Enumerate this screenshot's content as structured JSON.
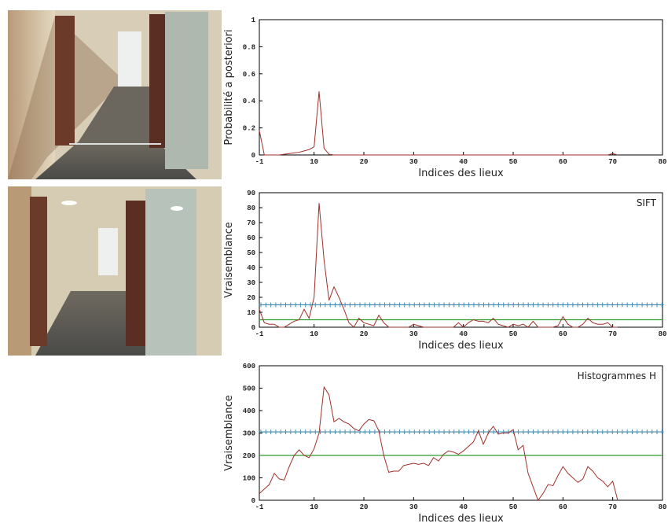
{
  "chart_data": [
    {
      "type": "line",
      "ylabel": "Probabilité a posteriori",
      "xlabel": "Indices des lieux",
      "x": [
        -1,
        0,
        1,
        2,
        3,
        4,
        5,
        6,
        7,
        8,
        9,
        10,
        11,
        12,
        13,
        14,
        15,
        16,
        17,
        18,
        19,
        20,
        21,
        22,
        23,
        24,
        25,
        26,
        27,
        28,
        29,
        30,
        31,
        32,
        33,
        34,
        35,
        36,
        37,
        38,
        39,
        40,
        41,
        42,
        43,
        44,
        45,
        46,
        47,
        48,
        49,
        50,
        51,
        52,
        53,
        54,
        55,
        56,
        57,
        58,
        59,
        60,
        61,
        62,
        63,
        64,
        65,
        66,
        67,
        68,
        69,
        70,
        71
      ],
      "values": [
        0.18,
        0,
        0,
        0,
        0,
        0.005,
        0.01,
        0.015,
        0.02,
        0.03,
        0.04,
        0.06,
        0.47,
        0.05,
        0.005,
        0,
        0,
        0,
        0,
        0,
        0,
        0,
        0,
        0,
        0,
        0,
        0,
        0,
        0,
        0,
        0,
        0,
        0,
        0,
        0,
        0,
        0,
        0,
        0,
        0,
        0,
        0,
        0,
        0,
        0,
        0,
        0,
        0,
        0,
        0,
        0,
        0,
        0,
        0,
        0,
        0,
        0,
        0,
        0,
        0,
        0,
        0,
        0,
        0,
        0,
        0,
        0,
        0,
        0,
        0,
        0,
        0.01,
        0
      ],
      "color": "#a0302a",
      "xlim": [
        -1,
        80
      ],
      "ylim": [
        0,
        1
      ],
      "xticks": [
        -1,
        10,
        20,
        30,
        40,
        50,
        60,
        70,
        80
      ],
      "yticks": [
        0,
        0.2,
        0.4,
        0.6,
        0.8,
        1
      ]
    },
    {
      "type": "line",
      "ylabel": "Vraisemblance",
      "xlabel": "Indices des lieux",
      "annotation": "SIFT",
      "x": [
        -1,
        0,
        1,
        2,
        3,
        4,
        5,
        6,
        7,
        8,
        9,
        10,
        11,
        12,
        13,
        14,
        15,
        16,
        17,
        18,
        19,
        20,
        21,
        22,
        23,
        24,
        25,
        26,
        27,
        28,
        29,
        30,
        31,
        32,
        33,
        34,
        35,
        36,
        37,
        38,
        39,
        40,
        41,
        42,
        43,
        44,
        45,
        46,
        47,
        48,
        49,
        50,
        51,
        52,
        53,
        54,
        55,
        56,
        57,
        58,
        59,
        60,
        61,
        62,
        63,
        64,
        65,
        66,
        67,
        68,
        69,
        70,
        71
      ],
      "values": [
        12,
        3,
        2,
        2,
        0,
        0,
        2,
        4,
        5,
        12,
        6,
        20,
        83,
        45,
        18,
        27,
        20,
        12,
        3,
        0,
        6,
        3,
        2,
        1,
        8,
        3,
        0,
        0,
        0,
        0,
        0,
        2,
        1,
        0,
        0,
        0,
        0,
        0,
        0,
        0,
        3,
        0,
        3,
        5,
        4,
        4,
        3,
        6,
        2,
        1,
        0,
        2,
        1,
        2,
        0,
        4,
        0,
        0,
        0,
        0,
        1,
        7,
        2,
        0,
        0,
        2,
        6,
        3,
        2,
        2,
        3,
        0,
        0
      ],
      "color": "#a0302a",
      "xlim": [
        -1,
        80
      ],
      "ylim": [
        0,
        90
      ],
      "xticks": [
        -1,
        10,
        20,
        30,
        40,
        50,
        60,
        70,
        80
      ],
      "yticks": [
        0,
        10,
        20,
        30,
        40,
        50,
        60,
        70,
        80,
        90
      ],
      "thresholds": [
        {
          "value": 15,
          "color": "#4a8fb5",
          "marker": "+"
        },
        {
          "value": 5,
          "color": "#2e9e2e"
        }
      ]
    },
    {
      "type": "line",
      "ylabel": "Vraisemblance",
      "xlabel": "Indices des lieux",
      "annotation": "Histogrammes H",
      "x": [
        -1,
        0,
        1,
        2,
        3,
        4,
        5,
        6,
        7,
        8,
        9,
        10,
        11,
        12,
        13,
        14,
        15,
        16,
        17,
        18,
        19,
        20,
        21,
        22,
        23,
        24,
        25,
        26,
        27,
        28,
        29,
        30,
        31,
        32,
        33,
        34,
        35,
        36,
        37,
        38,
        39,
        40,
        41,
        42,
        43,
        44,
        45,
        46,
        47,
        48,
        49,
        50,
        51,
        52,
        53,
        54,
        55,
        56,
        57,
        58,
        59,
        60,
        61,
        62,
        63,
        64,
        65,
        66,
        67,
        68,
        69,
        70,
        71
      ],
      "values": [
        30,
        50,
        70,
        120,
        95,
        90,
        150,
        200,
        225,
        200,
        190,
        230,
        300,
        505,
        470,
        350,
        365,
        350,
        340,
        320,
        310,
        340,
        360,
        355,
        310,
        200,
        125,
        130,
        130,
        155,
        160,
        165,
        160,
        165,
        155,
        190,
        175,
        205,
        220,
        215,
        205,
        220,
        240,
        260,
        310,
        250,
        300,
        330,
        295,
        300,
        300,
        315,
        225,
        245,
        120,
        60,
        0,
        30,
        70,
        65,
        110,
        150,
        120,
        100,
        80,
        95,
        150,
        130,
        100,
        85,
        60,
        85,
        0
      ],
      "color": "#a0302a",
      "xlim": [
        -1,
        80
      ],
      "ylim": [
        0,
        600
      ],
      "xticks": [
        -1,
        10,
        20,
        30,
        40,
        50,
        60,
        70,
        80
      ],
      "yticks": [
        0,
        100,
        200,
        300,
        400,
        500,
        600
      ],
      "thresholds": [
        {
          "value": 305,
          "color": "#4a8fb5",
          "marker": "+"
        },
        {
          "value": 200,
          "color": "#2e9e2e"
        }
      ]
    }
  ]
}
